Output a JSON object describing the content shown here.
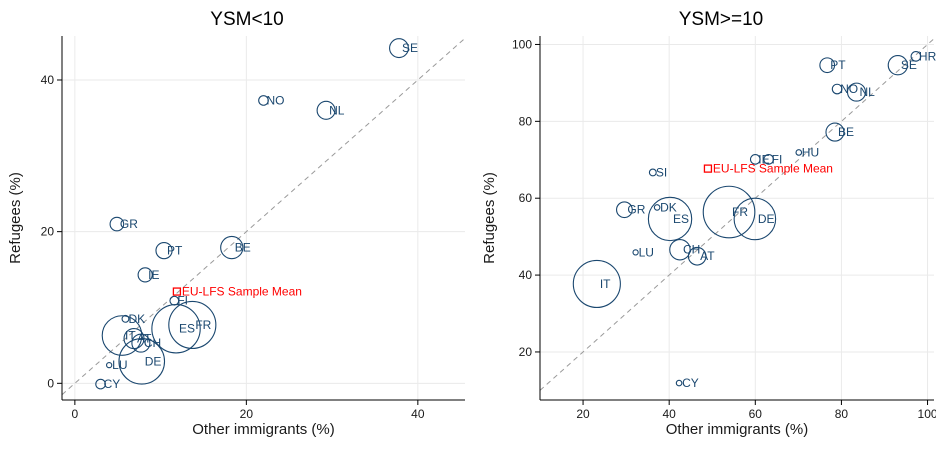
{
  "chart_data": [
    {
      "type": "scatter",
      "title": "YSM<10",
      "xlabel": "Other immigrants (%)",
      "ylabel": "Refugees (%)",
      "xlim": [
        -1.5,
        45.5
      ],
      "ylim": [
        -2.2,
        45.8
      ],
      "xticks": [
        0,
        20,
        40
      ],
      "yticks": [
        0,
        20,
        40
      ],
      "grid": true,
      "reference_line": "45-degree line",
      "colors": {
        "points": "#1a476f",
        "mean": "#ff0000",
        "grid": "#eaeaea",
        "reference": "#9a9a9a"
      },
      "points": [
        {
          "label": "SE",
          "x": 37.8,
          "y": 44.2,
          "size": 2.3
        },
        {
          "label": "NO",
          "x": 22.0,
          "y": 37.3,
          "size": 0.6
        },
        {
          "label": "NL",
          "x": 29.3,
          "y": 36.0,
          "size": 2.1
        },
        {
          "label": "GR",
          "x": 4.9,
          "y": 21.0,
          "size": 1.2
        },
        {
          "label": "PT",
          "x": 10.4,
          "y": 17.5,
          "size": 1.7
        },
        {
          "label": "BE",
          "x": 18.3,
          "y": 17.9,
          "size": 3.2
        },
        {
          "label": "IE",
          "x": 8.2,
          "y": 14.3,
          "size": 1.3
        },
        {
          "label": "FI",
          "x": 11.6,
          "y": 10.9,
          "size": 0.5
        },
        {
          "label": "DK",
          "x": 5.9,
          "y": 8.5,
          "size": 0.3
        },
        {
          "label": "IT",
          "x": 5.5,
          "y": 6.3,
          "size": 10.2
        },
        {
          "label": "AT",
          "x": 6.9,
          "y": 5.9,
          "size": 2.6
        },
        {
          "label": "CH",
          "x": 7.7,
          "y": 5.3,
          "size": 2.1
        },
        {
          "label": "ES",
          "x": 11.8,
          "y": 7.2,
          "size": 15.2
        },
        {
          "label": "FR",
          "x": 13.7,
          "y": 7.7,
          "size": 14.4
        },
        {
          "label": "DE",
          "x": 7.8,
          "y": 2.9,
          "size": 13.5
        },
        {
          "label": "LU",
          "x": 4.0,
          "y": 2.4,
          "size": 0.1
        },
        {
          "label": "CY",
          "x": 3.0,
          "y": -0.1,
          "size": 0.6
        }
      ],
      "mean": {
        "label": "EU-LFS Sample Mean",
        "x": 11.9,
        "y": 12.1
      }
    },
    {
      "type": "scatter",
      "title": "YSM>=10",
      "xlabel": "Other immigrants (%)",
      "ylabel": "Refugees (%)",
      "xlim": [
        10,
        101.5
      ],
      "ylim": [
        7.5,
        102.2
      ],
      "xticks": [
        20,
        40,
        60,
        80,
        100
      ],
      "yticks": [
        20,
        40,
        60,
        80,
        100
      ],
      "grid": true,
      "reference_line": "45-degree line",
      "colors": {
        "points": "#1a476f",
        "mean": "#ff0000",
        "grid": "#eaeaea",
        "reference": "#9a9a9a"
      },
      "points": [
        {
          "label": "HR",
          "x": 97.3,
          "y": 96.9,
          "size": 0.6
        },
        {
          "label": "PT",
          "x": 76.7,
          "y": 94.6,
          "size": 1.4
        },
        {
          "label": "SE",
          "x": 93.1,
          "y": 94.6,
          "size": 2.4
        },
        {
          "label": "NO",
          "x": 79.0,
          "y": 88.4,
          "size": 0.6
        },
        {
          "label": "NL",
          "x": 83.5,
          "y": 87.6,
          "size": 2.1
        },
        {
          "label": "BE",
          "x": 78.5,
          "y": 77.2,
          "size": 2.1
        },
        {
          "label": "HU",
          "x": 70.1,
          "y": 71.9,
          "size": 0.2
        },
        {
          "label": "IE",
          "x": 60.0,
          "y": 70.1,
          "size": 0.6
        },
        {
          "label": "FI",
          "x": 63.1,
          "y": 70.1,
          "size": 0.6
        },
        {
          "label": "SI",
          "x": 36.2,
          "y": 66.7,
          "size": 0.3
        },
        {
          "label": "GR",
          "x": 29.6,
          "y": 57.0,
          "size": 1.6
        },
        {
          "label": "DK",
          "x": 37.2,
          "y": 57.6,
          "size": 0.2
        },
        {
          "label": "ES",
          "x": 40.2,
          "y": 54.6,
          "size": 12.2
        },
        {
          "label": "FR",
          "x": 53.9,
          "y": 56.4,
          "size": 17.3
        },
        {
          "label": "DE",
          "x": 59.9,
          "y": 54.6,
          "size": 11.2
        },
        {
          "label": "CH",
          "x": 42.5,
          "y": 46.6,
          "size": 2.7
        },
        {
          "label": "AT",
          "x": 46.5,
          "y": 44.9,
          "size": 2.0
        },
        {
          "label": "LU",
          "x": 32.2,
          "y": 45.9,
          "size": 0.1
        },
        {
          "label": "IT",
          "x": 23.2,
          "y": 37.7,
          "size": 14.4
        },
        {
          "label": "CY",
          "x": 42.3,
          "y": 11.9,
          "size": 0.2
        }
      ],
      "mean": {
        "label": "EU-LFS Sample Mean",
        "x": 49.0,
        "y": 67.7
      }
    }
  ]
}
